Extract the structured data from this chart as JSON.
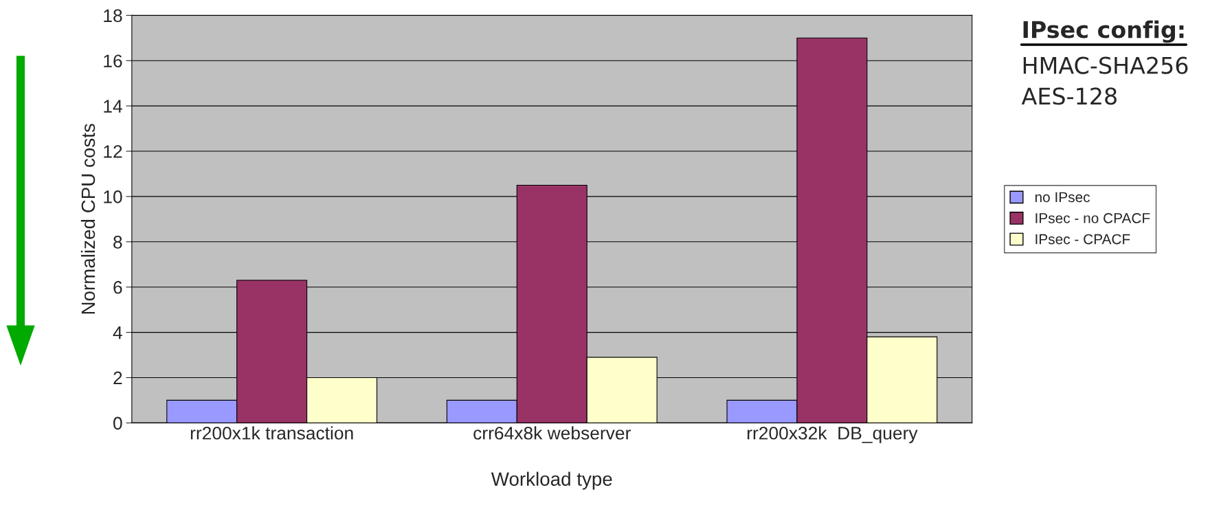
{
  "chart_data": {
    "type": "bar",
    "xlabel": "Workload type",
    "ylabel": "Normalized CPU costs",
    "categories": [
      "rr200x1k transaction",
      "crr64x8k webserver",
      "rr200x32k  DB_query"
    ],
    "series": [
      {
        "name": "no IPsec",
        "color": "#9999ff",
        "values": [
          1.0,
          1.0,
          1.0
        ]
      },
      {
        "name": "IPsec - no CPACF",
        "color": "#993366",
        "values": [
          6.3,
          10.5,
          17.0
        ]
      },
      {
        "name": "IPsec - CPACF",
        "color": "#ffffcc",
        "values": [
          2.0,
          2.9,
          3.8
        ]
      }
    ],
    "ylim": [
      0,
      18
    ],
    "yticks": [
      0,
      2,
      4,
      6,
      8,
      10,
      12,
      14,
      16,
      18
    ],
    "grid": "y",
    "legend": "right",
    "annotations": [
      "IPsec config:",
      "HMAC-SHA256",
      "AES-128"
    ]
  }
}
